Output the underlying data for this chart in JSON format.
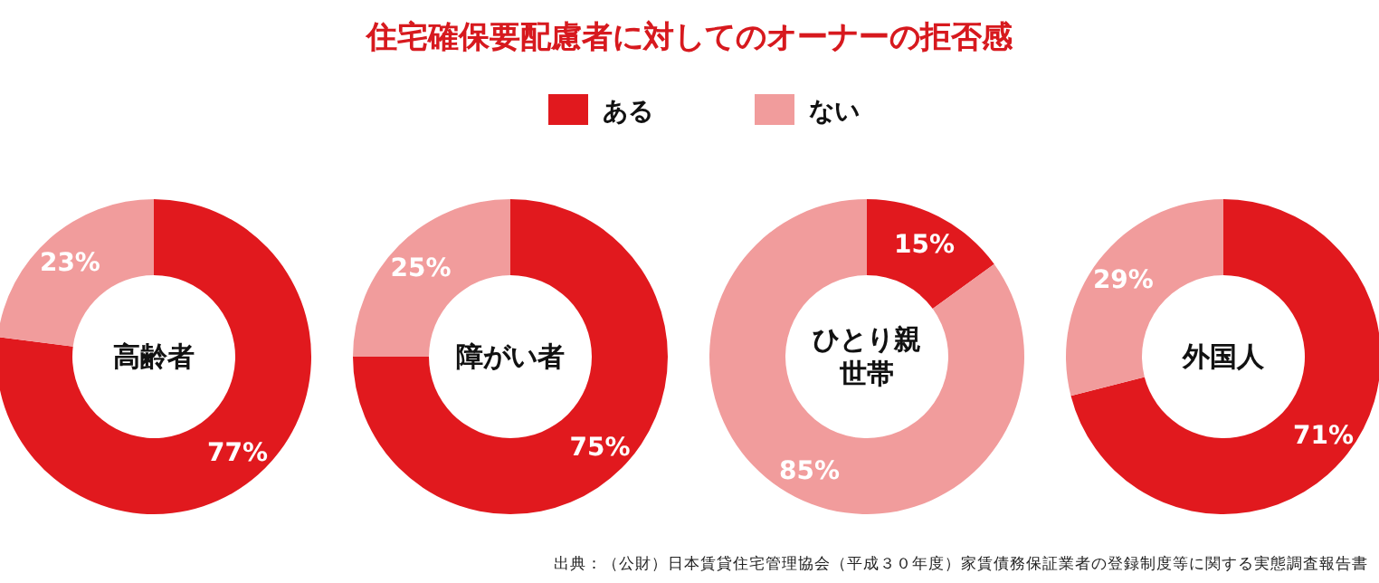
{
  "chart_data": [
    {
      "type": "other",
      "title": "住宅確保要配慮者に対してのオーナーの拒否感",
      "annotations": [
        "出典：（公財）日本賃貸住宅管理協会（平成３０年度）家賃債務保証業者の登録制度等に関する実態調査報告書"
      ]
    },
    {
      "type": "donut",
      "title": "高齢者",
      "categories": [
        "ある",
        "ない"
      ],
      "values": [
        77,
        23
      ],
      "value_labels": [
        "77%",
        "23%"
      ],
      "colors": [
        "#e1191e",
        "#f19c9c"
      ],
      "legend": "top"
    },
    {
      "type": "donut",
      "title": "障がい者",
      "categories": [
        null,
        null
      ],
      "values": [
        75,
        25
      ],
      "value_labels": [
        "75%",
        "25%"
      ],
      "colors": [
        "#e1191e",
        "#f19c9c"
      ]
    },
    {
      "type": "donut",
      "title": "ひとり親世帯",
      "categories": [
        null,
        null
      ],
      "values": [
        15,
        85
      ],
      "value_labels": [
        "15%",
        "85%"
      ],
      "colors": [
        "#e1191e",
        "#f19c9c"
      ]
    },
    {
      "type": "donut",
      "title": "外国人",
      "categories": [
        null,
        null
      ],
      "values": [
        71,
        29
      ],
      "value_labels": [
        "71%",
        "29%"
      ],
      "colors": [
        "#e1191e",
        "#f19c9c"
      ]
    }
  ]
}
